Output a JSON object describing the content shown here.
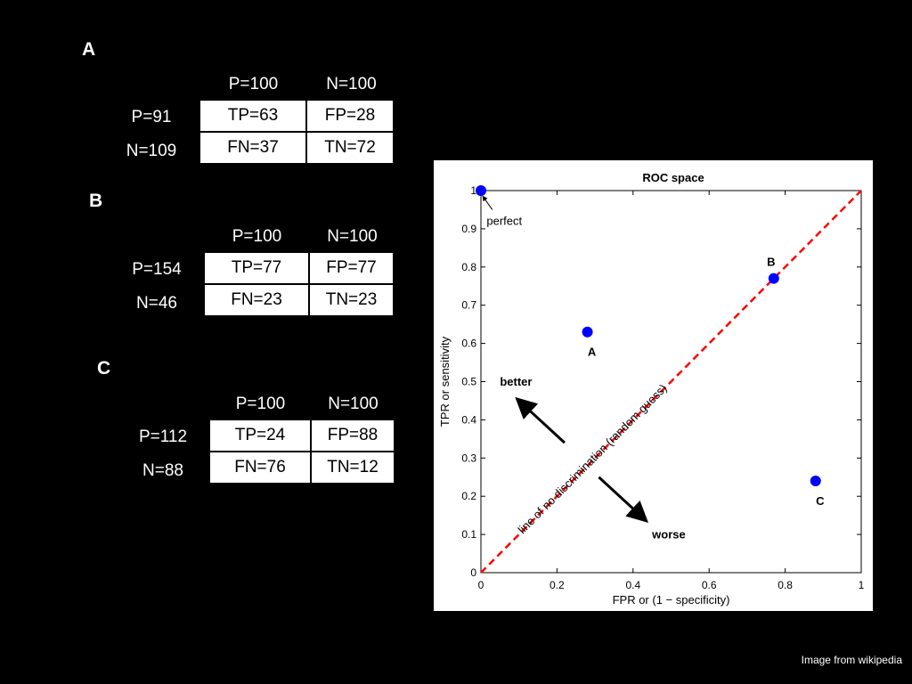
{
  "tables": [
    {
      "label": "A",
      "col_headers": [
        "P=100",
        "N=100"
      ],
      "rows": [
        {
          "label": "P=91",
          "cells": [
            "TP=63",
            "FP=28"
          ]
        },
        {
          "label": "N=109",
          "cells": [
            "FN=37",
            "TN=72"
          ]
        }
      ]
    },
    {
      "label": "B",
      "col_headers": [
        "P=100",
        "N=100"
      ],
      "rows": [
        {
          "label": "P=154",
          "cells": [
            "TP=77",
            "FP=77"
          ]
        },
        {
          "label": "N=46",
          "cells": [
            "FN=23",
            "TN=23"
          ]
        }
      ]
    },
    {
      "label": "C",
      "col_headers": [
        "P=100",
        "N=100"
      ],
      "rows": [
        {
          "label": "P=112",
          "cells": [
            "TP=24",
            "FP=88"
          ]
        },
        {
          "label": "N=88",
          "cells": [
            "FN=76",
            "TN=12"
          ]
        }
      ]
    }
  ],
  "chart_data": {
    "type": "scatter",
    "title": "ROC space",
    "xlabel": "FPR or (1 − specificity)",
    "ylabel": "TPR or sensitivity",
    "xlim": [
      0,
      1
    ],
    "ylim": [
      0,
      1
    ],
    "xticks": [
      "0",
      "0.2",
      "0.4",
      "0.6",
      "0.8",
      "1"
    ],
    "yticks": [
      "0",
      "0.1",
      "0.2",
      "0.3",
      "0.4",
      "0.5",
      "0.6",
      "0.7",
      "0.8",
      "0.9",
      "1"
    ],
    "grid": false,
    "points": [
      {
        "label": "",
        "x": 0.0,
        "y": 1.0
      },
      {
        "label": "A",
        "x": 0.28,
        "y": 0.63
      },
      {
        "label": "B",
        "x": 0.77,
        "y": 0.77
      },
      {
        "label": "C",
        "x": 0.88,
        "y": 0.24
      }
    ],
    "point_color": "#0000ff",
    "diagonal": {
      "label": "line of no discrimination (random guess)",
      "color": "#ff0000",
      "from": [
        0,
        0
      ],
      "to": [
        1,
        1
      ]
    },
    "annotations": {
      "perfect": "perfect",
      "better": "better",
      "worse": "worse"
    }
  },
  "credit": "Image from wikipedia"
}
